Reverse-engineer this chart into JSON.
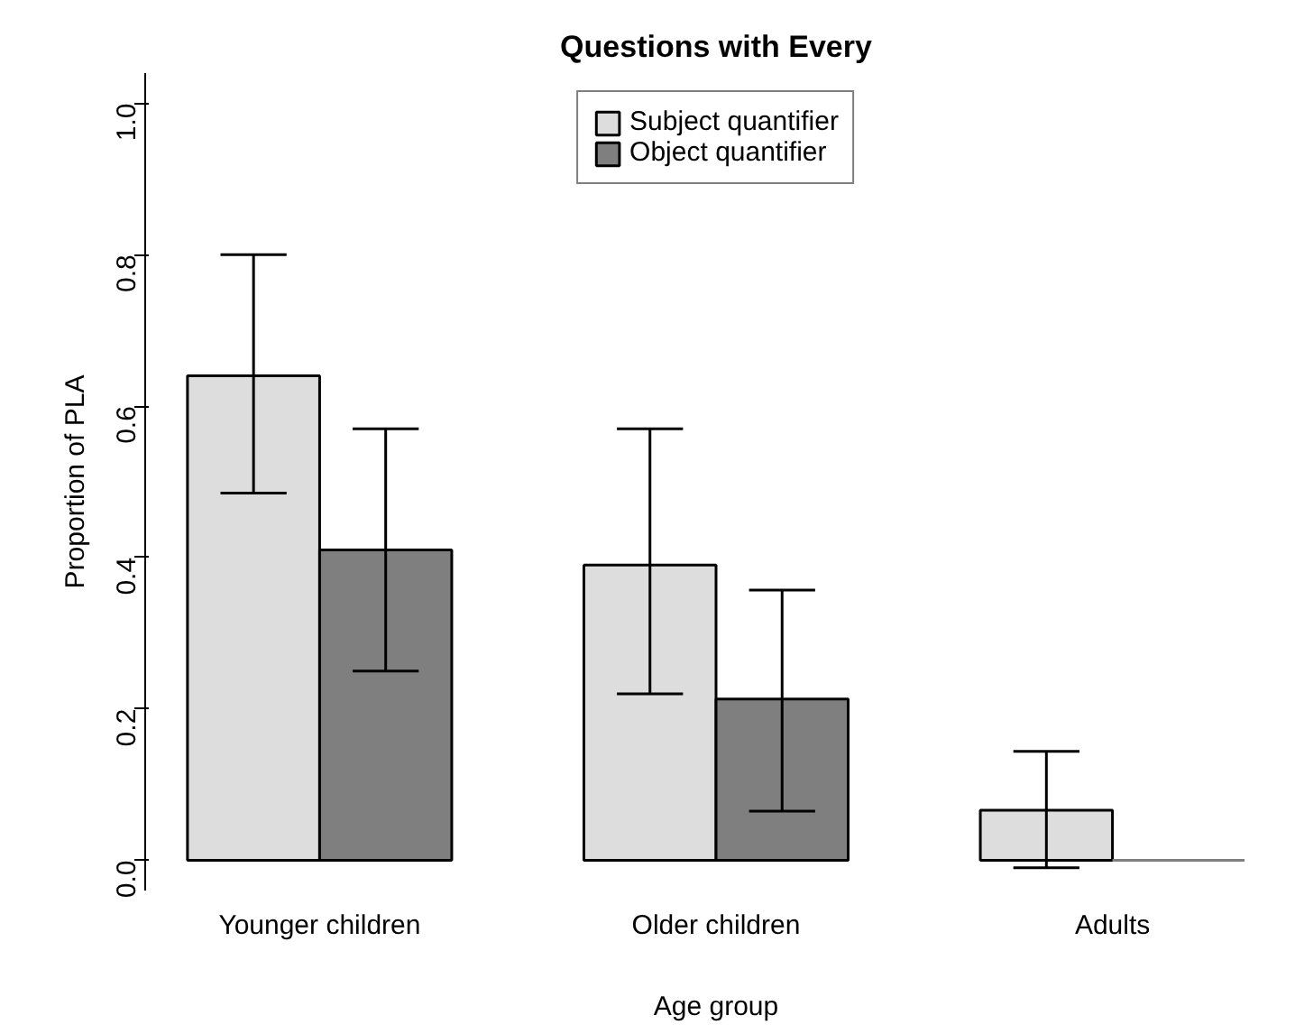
{
  "chart_data": {
    "type": "bar",
    "title": "Questions with Every",
    "xlabel": "Age group",
    "ylabel": "Proportion of PLA",
    "categories": [
      "Younger children",
      "Older children",
      "Adults"
    ],
    "series": [
      {
        "name": "Subject quantifier",
        "color": "#dddddd",
        "values": [
          0.64,
          0.39,
          0.066
        ],
        "errors": [
          [
            0.485,
            0.8
          ],
          [
            0.22,
            0.57
          ],
          [
            -0.01,
            0.144
          ]
        ]
      },
      {
        "name": "Object quantifier",
        "color": "#7f7f7f",
        "values": [
          0.41,
          0.213,
          0
        ],
        "errors": [
          [
            0.25,
            0.57
          ],
          [
            0.065,
            0.357
          ],
          null
        ]
      }
    ],
    "ylim": [
      -0.04,
      1.04
    ],
    "yticks": [
      {
        "value": 0,
        "label": "0.0"
      },
      0.2,
      0.4,
      0.6,
      0.8,
      {
        "value": 1,
        "label": "1.0"
      }
    ],
    "grid": false,
    "legend": "top"
  }
}
